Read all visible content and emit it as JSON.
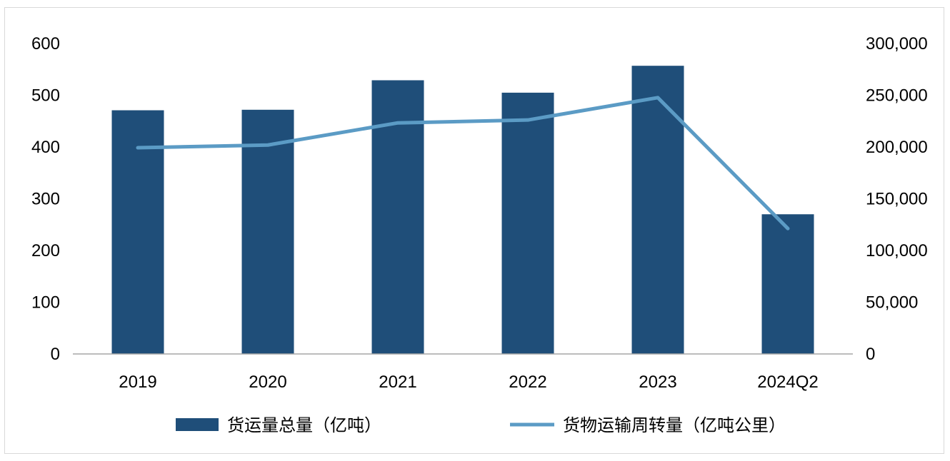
{
  "chart_data": {
    "type": "bar+line",
    "categories": [
      "2019",
      "2020",
      "2021",
      "2022",
      "2023",
      "2024Q2"
    ],
    "series": [
      {
        "name": "货运量总量（亿吨）",
        "type": "bar",
        "axis": "left",
        "values": [
          471,
          472,
          529,
          505,
          557,
          270
        ]
      },
      {
        "name": "货物运输周转量（亿吨公里）",
        "type": "line",
        "axis": "right",
        "values": [
          199300,
          201900,
          223300,
          226100,
          247700,
          121200
        ]
      }
    ],
    "y_left": {
      "min": 0,
      "max": 600,
      "ticks": [
        "0",
        "100",
        "200",
        "300",
        "400",
        "500",
        "600"
      ]
    },
    "y_right": {
      "min": 0,
      "max": 300000,
      "ticks": [
        "0",
        "50,000",
        "100,000",
        "150,000",
        "200,000",
        "250,000",
        "300,000"
      ]
    },
    "grid": false,
    "legend_position": "bottom",
    "colors": {
      "bar": "#1f4e79",
      "line": "#5b9bc5",
      "axis": "#a6a6a6"
    }
  }
}
